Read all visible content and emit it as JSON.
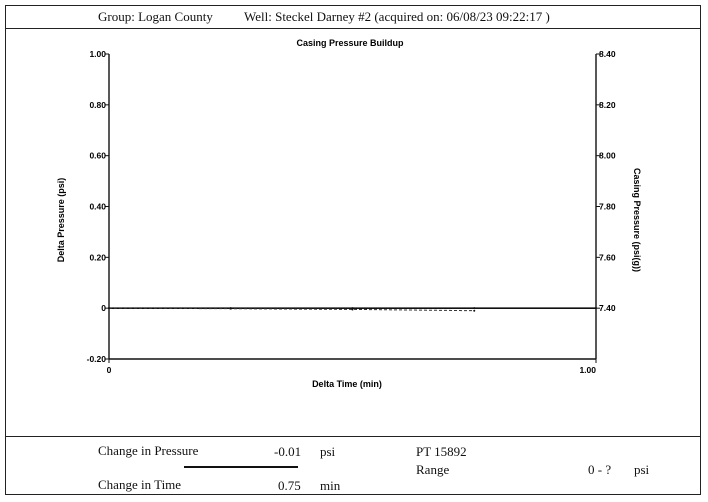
{
  "header": {
    "group": "Group: Logan County",
    "well": "Well: Steckel Darney #2 (acquired on: 06/08/23 09:22:17 )"
  },
  "chart_data": {
    "type": "line",
    "title": "Casing Pressure Buildup",
    "xlabel": "Delta Time (min)",
    "ylabel": "Delta Pressure (psi)",
    "y2label": "Casing Pressure (psi(g))",
    "xlim": [
      0,
      1.0
    ],
    "ylim": [
      -0.2,
      1.0
    ],
    "y2lim": [
      7.4,
      8.4
    ],
    "x_ticks": [
      "0",
      "1.00"
    ],
    "y_ticks": [
      "1.00",
      "0.80",
      "0.60",
      "0.40",
      "0.20",
      "0",
      "-0.20"
    ],
    "y2_ticks": [
      "8.40",
      "8.20",
      "8.00",
      "7.80",
      "7.60",
      "7.40"
    ],
    "grid": false,
    "series": [
      {
        "axis": "left",
        "style": "solid",
        "x": [
          0,
          0.25,
          0.5,
          0.75,
          1.0
        ],
        "y": [
          0,
          0,
          0,
          0,
          0
        ]
      },
      {
        "axis": "left",
        "style": "dashed",
        "x": [
          0,
          0.25,
          0.5,
          0.75
        ],
        "y": [
          0,
          -0.002,
          -0.005,
          -0.01
        ]
      }
    ]
  },
  "footer": {
    "change_pressure_label": "Change in Pressure",
    "change_pressure_value": "-0.01",
    "change_pressure_unit": "psi",
    "change_time_label": "Change in Time",
    "change_time_value": "0.75",
    "change_time_unit": "min",
    "pt_label": "PT 15892",
    "range_label": "Range",
    "range_value": "0 - ?",
    "range_unit": "psi"
  }
}
